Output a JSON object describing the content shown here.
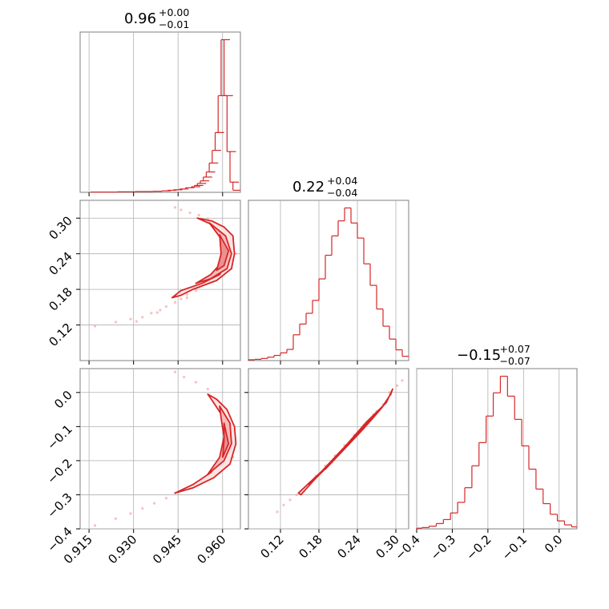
{
  "chart_data": [
    {
      "type": "histogram",
      "panel": "0-0",
      "title": {
        "main": "0.96",
        "sup": "+0.00",
        "sub": "−0.01"
      },
      "xlim": [
        0.912,
        0.966
      ],
      "xticks": [
        0.915,
        0.93,
        0.945,
        0.96
      ],
      "xtick_labels": [
        "0.915",
        "0.930",
        "0.945",
        "0.960"
      ],
      "x": [
        0.917,
        0.92,
        0.923,
        0.926,
        0.929,
        0.932,
        0.935,
        0.938,
        0.941,
        0.943,
        0.945,
        0.947,
        0.949,
        0.951,
        0.952,
        0.953,
        0.954,
        0.955,
        0.956,
        0.957,
        0.958,
        0.959,
        0.96,
        0.961,
        0.962,
        0.963,
        0.964,
        0.965
      ],
      "y": [
        1,
        1,
        1,
        2,
        2,
        3,
        3,
        4,
        6,
        8,
        10,
        13,
        18,
        22,
        27,
        35,
        45,
        60,
        80,
        115,
        165,
        235,
        380,
        600,
        380,
        160,
        40,
        8
      ],
      "grid": true,
      "color": "#d62728"
    },
    {
      "type": "histogram",
      "panel": "1-1",
      "title": {
        "main": "0.22",
        "sup": "+0.04",
        "sub": "−0.04"
      },
      "xlim": [
        0.07,
        0.32
      ],
      "xticks": [
        0.12,
        0.18,
        0.24,
        0.3
      ],
      "xtick_labels": [
        "0.12",
        "0.18",
        "0.24",
        "0.30"
      ],
      "x": [
        0.075,
        0.085,
        0.095,
        0.105,
        0.115,
        0.125,
        0.135,
        0.145,
        0.155,
        0.165,
        0.175,
        0.185,
        0.195,
        0.205,
        0.215,
        0.225,
        0.235,
        0.245,
        0.255,
        0.265,
        0.275,
        0.285,
        0.295,
        0.305,
        0.315
      ],
      "y": [
        2,
        3,
        5,
        8,
        12,
        18,
        26,
        60,
        85,
        110,
        140,
        190,
        245,
        290,
        325,
        355,
        320,
        285,
        225,
        175,
        120,
        80,
        50,
        25,
        10
      ],
      "grid": true,
      "color": "#d62728"
    },
    {
      "type": "histogram",
      "panel": "2-2",
      "title": {
        "main": "−0.15",
        "sup": "+0.07",
        "sub": "−0.07"
      },
      "xlim": [
        -0.4,
        0.05
      ],
      "xticks": [
        -0.4,
        -0.3,
        -0.2,
        -0.1,
        0.0
      ],
      "xtick_labels": [
        "−0.4",
        "−0.3",
        "−0.2",
        "−0.1",
        "0.0"
      ],
      "x": [
        -0.395,
        -0.375,
        -0.355,
        -0.335,
        -0.315,
        -0.295,
        -0.275,
        -0.255,
        -0.235,
        -0.215,
        -0.195,
        -0.175,
        -0.155,
        -0.135,
        -0.115,
        -0.095,
        -0.075,
        -0.055,
        -0.035,
        -0.015,
        0.005,
        0.025,
        0.045
      ],
      "y": [
        1,
        2,
        4,
        8,
        14,
        24,
        40,
        62,
        95,
        130,
        170,
        205,
        230,
        200,
        165,
        125,
        90,
        60,
        38,
        22,
        12,
        6,
        3
      ],
      "grid": true,
      "color": "#d62728"
    },
    {
      "type": "scatter_contour",
      "panel": "1-0",
      "xlim": [
        0.912,
        0.966
      ],
      "ylim": [
        0.06,
        0.33
      ],
      "xticks": [
        0.915,
        0.93,
        0.945,
        0.96
      ],
      "yticks": [
        0.12,
        0.18,
        0.24,
        0.3
      ],
      "ytick_labels": [
        "0.12",
        "0.18",
        "0.24",
        "0.30"
      ],
      "levels": [
        [
          [
            0.9515,
            0.3
          ],
          [
            0.9565,
            0.295
          ],
          [
            0.9605,
            0.285
          ],
          [
            0.9635,
            0.27
          ],
          [
            0.964,
            0.24
          ],
          [
            0.963,
            0.215
          ],
          [
            0.958,
            0.195
          ],
          [
            0.95,
            0.18
          ],
          [
            0.946,
            0.17
          ],
          [
            0.943,
            0.166
          ],
          [
            0.946,
            0.178
          ],
          [
            0.953,
            0.19
          ],
          [
            0.959,
            0.205
          ],
          [
            0.962,
            0.23
          ],
          [
            0.961,
            0.27
          ],
          [
            0.956,
            0.29
          ]
        ],
        [
          [
            0.9555,
            0.292
          ],
          [
            0.961,
            0.27
          ],
          [
            0.963,
            0.24
          ],
          [
            0.9615,
            0.215
          ],
          [
            0.956,
            0.198
          ],
          [
            0.951,
            0.19
          ],
          [
            0.956,
            0.205
          ],
          [
            0.9605,
            0.23
          ],
          [
            0.96,
            0.262
          ]
        ],
        [
          [
            0.959,
            0.272
          ],
          [
            0.962,
            0.245
          ],
          [
            0.9605,
            0.22
          ],
          [
            0.958,
            0.212
          ],
          [
            0.9595,
            0.24
          ]
        ]
      ],
      "scatter": [
        [
          0.917,
          0.118
        ],
        [
          0.924,
          0.125
        ],
        [
          0.929,
          0.13
        ],
        [
          0.933,
          0.133
        ],
        [
          0.936,
          0.14
        ],
        [
          0.939,
          0.145
        ],
        [
          0.941,
          0.151
        ],
        [
          0.944,
          0.158
        ],
        [
          0.946,
          0.164
        ],
        [
          0.948,
          0.171
        ],
        [
          0.951,
          0.178
        ],
        [
          0.944,
          0.318
        ],
        [
          0.946,
          0.314
        ],
        [
          0.949,
          0.309
        ],
        [
          0.952,
          0.305
        ],
        [
          0.955,
          0.299
        ],
        [
          0.958,
          0.29
        ],
        [
          0.961,
          0.28
        ],
        [
          0.9635,
          0.265
        ],
        [
          0.9645,
          0.24
        ],
        [
          0.963,
          0.215
        ],
        [
          0.957,
          0.197
        ],
        [
          0.952,
          0.184
        ],
        [
          0.948,
          0.166
        ],
        [
          0.931,
          0.126
        ],
        [
          0.938,
          0.141
        ]
      ],
      "color": "#d62728"
    },
    {
      "type": "scatter_contour",
      "panel": "2-0",
      "xlim": [
        0.912,
        0.966
      ],
      "ylim": [
        -0.4,
        0.07
      ],
      "xticks": [
        0.915,
        0.93,
        0.945,
        0.96
      ],
      "xtick_labels": [
        "0.915",
        "0.930",
        "0.945",
        "0.960"
      ],
      "yticks": [
        -0.4,
        -0.3,
        -0.2,
        -0.1,
        0.0
      ],
      "ytick_labels": [
        "−0.4",
        "−0.3",
        "−0.2",
        "−0.1",
        "0.0"
      ],
      "levels": [
        [
          [
            0.955,
            -0.005
          ],
          [
            0.958,
            -0.02
          ],
          [
            0.9615,
            -0.05
          ],
          [
            0.964,
            -0.1
          ],
          [
            0.9645,
            -0.15
          ],
          [
            0.9625,
            -0.21
          ],
          [
            0.957,
            -0.25
          ],
          [
            0.95,
            -0.28
          ],
          [
            0.944,
            -0.295
          ],
          [
            0.95,
            -0.27
          ],
          [
            0.956,
            -0.235
          ],
          [
            0.96,
            -0.19
          ],
          [
            0.9615,
            -0.13
          ],
          [
            0.96,
            -0.07
          ],
          [
            0.957,
            -0.03
          ]
        ],
        [
          [
            0.959,
            -0.04
          ],
          [
            0.9625,
            -0.09
          ],
          [
            0.963,
            -0.15
          ],
          [
            0.9605,
            -0.2
          ],
          [
            0.955,
            -0.24
          ],
          [
            0.959,
            -0.19
          ],
          [
            0.9605,
            -0.13
          ],
          [
            0.9595,
            -0.075
          ]
        ],
        [
          [
            0.9605,
            -0.09
          ],
          [
            0.962,
            -0.15
          ],
          [
            0.96,
            -0.19
          ],
          [
            0.9605,
            -0.14
          ]
        ]
      ],
      "scatter": [
        [
          0.917,
          -0.39
        ],
        [
          0.924,
          -0.37
        ],
        [
          0.929,
          -0.355
        ],
        [
          0.933,
          -0.34
        ],
        [
          0.937,
          -0.325
        ],
        [
          0.941,
          -0.31
        ],
        [
          0.944,
          -0.295
        ],
        [
          0.944,
          0.06
        ],
        [
          0.947,
          0.045
        ],
        [
          0.951,
          0.03
        ],
        [
          0.955,
          0.01
        ],
        [
          0.9585,
          -0.03
        ],
        [
          0.9615,
          -0.07
        ],
        [
          0.964,
          -0.13
        ],
        [
          0.9635,
          -0.19
        ],
        [
          0.959,
          -0.235
        ],
        [
          0.952,
          -0.27
        ]
      ],
      "color": "#d62728"
    },
    {
      "type": "scatter_contour",
      "panel": "2-1",
      "xlim": [
        0.07,
        0.32
      ],
      "ylim": [
        -0.4,
        0.07
      ],
      "xticks": [
        0.12,
        0.18,
        0.24,
        0.3
      ],
      "xtick_labels": [
        "0.12",
        "0.18",
        "0.24",
        "0.30"
      ],
      "yticks": [
        -0.4,
        -0.3,
        -0.2,
        -0.1,
        0.0
      ],
      "levels": [
        [
          [
            0.148,
            -0.295
          ],
          [
            0.185,
            -0.23
          ],
          [
            0.22,
            -0.16
          ],
          [
            0.255,
            -0.085
          ],
          [
            0.285,
            -0.03
          ],
          [
            0.295,
            0.01
          ],
          [
            0.292,
            -0.005
          ],
          [
            0.278,
            -0.045
          ],
          [
            0.25,
            -0.105
          ],
          [
            0.215,
            -0.175
          ],
          [
            0.178,
            -0.245
          ],
          [
            0.152,
            -0.3
          ]
        ],
        [
          [
            0.165,
            -0.27
          ],
          [
            0.2,
            -0.2
          ],
          [
            0.235,
            -0.13
          ],
          [
            0.265,
            -0.07
          ],
          [
            0.28,
            -0.04
          ],
          [
            0.262,
            -0.08
          ],
          [
            0.23,
            -0.145
          ],
          [
            0.192,
            -0.22
          ]
        ],
        [
          [
            0.19,
            -0.225
          ],
          [
            0.22,
            -0.165
          ],
          [
            0.25,
            -0.105
          ],
          [
            0.24,
            -0.125
          ],
          [
            0.208,
            -0.188
          ]
        ]
      ],
      "scatter": [
        [
          0.115,
          -0.35
        ],
        [
          0.125,
          -0.33
        ],
        [
          0.135,
          -0.315
        ],
        [
          0.145,
          -0.3
        ],
        [
          0.155,
          -0.285
        ],
        [
          0.165,
          -0.265
        ],
        [
          0.175,
          -0.245
        ],
        [
          0.19,
          -0.215
        ],
        [
          0.205,
          -0.185
        ],
        [
          0.22,
          -0.155
        ],
        [
          0.235,
          -0.125
        ],
        [
          0.25,
          -0.095
        ],
        [
          0.265,
          -0.065
        ],
        [
          0.28,
          -0.035
        ],
        [
          0.292,
          -0.005
        ],
        [
          0.302,
          0.02
        ],
        [
          0.31,
          0.035
        ],
        [
          0.2,
          -0.205
        ],
        [
          0.27,
          -0.055
        ],
        [
          0.29,
          0.0
        ]
      ],
      "color": "#d62728"
    }
  ]
}
